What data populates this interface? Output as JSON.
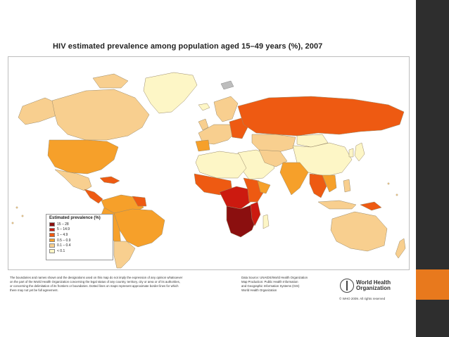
{
  "title": "HIV estimated prevalence among population aged 15–49 years (%), 2007",
  "legend": {
    "title": "Estimated prevalence (%)",
    "items": [
      {
        "label": "15 – 28",
        "color": "#8b0f0f"
      },
      {
        "label": "5 – 14.9",
        "color": "#cc1a10"
      },
      {
        "label": "1 – 4.9",
        "color": "#ee5a12"
      },
      {
        "label": "0.5 – 0.9",
        "color": "#f6a02a"
      },
      {
        "label": "0.1 – 0.4",
        "color": "#f8cf8f"
      },
      {
        "label": "< 0.1",
        "color": "#fdf6c6"
      }
    ]
  },
  "colors": {
    "ocean": "#ffffff",
    "no_data": "#bdbdbd",
    "border": "#9a8a6a",
    "panel": "#2e2e2e",
    "accent": "#e8791d"
  },
  "disclaimer": [
    "The boundaries and names shown and the designations used on this map do not imply the expression of any opinion whatsoever",
    "on the part of the World Health Organization concerning the legal status of any country, territory, city or area or of its authorities,",
    "or concerning the delimitation of its frontiers or boundaries. Dotted lines on maps represent approximate border lines for which",
    "there may not yet be full agreement."
  ],
  "source": [
    "Data Source: UNAIDS/World Health Organization",
    "Map Production: Public Health Information",
    "and Geographic Information Systems (GIS)",
    "World Health Organization"
  ],
  "who": {
    "name_line1": "World Health",
    "name_line2": "Organization",
    "copyright": "© WHO 2009. All rights reserved"
  }
}
